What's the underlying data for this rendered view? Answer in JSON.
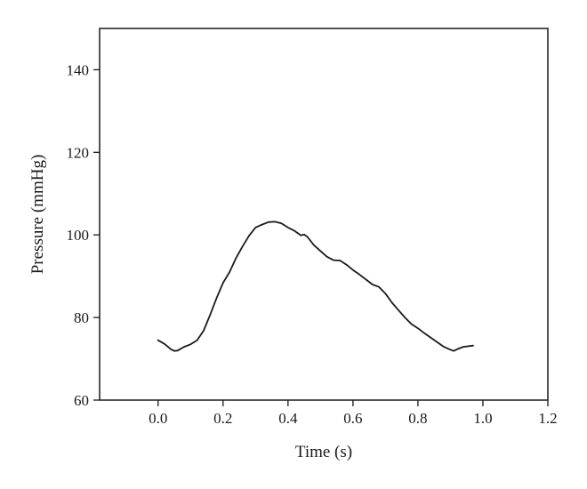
{
  "chart_data": {
    "type": "line",
    "title": "",
    "xlabel": "Time (s)",
    "ylabel": "Pressure (mmHg)",
    "xlim": [
      -0.18,
      1.2
    ],
    "ylim": [
      60,
      150
    ],
    "xticks": [
      0.0,
      0.2,
      0.4,
      0.6,
      0.8,
      1.0,
      1.2
    ],
    "xtick_labels": [
      "0.0",
      "0.2",
      "0.4",
      "0.6",
      "0.8",
      "1.0",
      "1.2"
    ],
    "yticks": [
      60,
      80,
      100,
      120,
      140
    ],
    "ytick_labels": [
      "60",
      "80",
      "100",
      "120",
      "140"
    ],
    "grid": false,
    "legend": "none",
    "series": [
      {
        "color": "#1a1a1a",
        "x": [
          0.0,
          0.02,
          0.04,
          0.05,
          0.06,
          0.08,
          0.1,
          0.12,
          0.14,
          0.16,
          0.18,
          0.2,
          0.22,
          0.24,
          0.26,
          0.28,
          0.3,
          0.32,
          0.34,
          0.36,
          0.38,
          0.4,
          0.42,
          0.44,
          0.45,
          0.46,
          0.48,
          0.5,
          0.52,
          0.54,
          0.56,
          0.58,
          0.6,
          0.62,
          0.64,
          0.66,
          0.68,
          0.7,
          0.72,
          0.74,
          0.76,
          0.78,
          0.8,
          0.82,
          0.84,
          0.86,
          0.88,
          0.9,
          0.91,
          0.92,
          0.94,
          0.97
        ],
        "y": [
          74.5,
          73.6,
          72.3,
          71.9,
          72.0,
          72.9,
          73.5,
          74.5,
          76.8,
          80.6,
          84.7,
          88.4,
          91.0,
          94.4,
          97.2,
          99.8,
          101.8,
          102.5,
          103.1,
          103.2,
          102.8,
          101.8,
          101.0,
          99.9,
          100.1,
          99.5,
          97.5,
          96.1,
          94.7,
          93.9,
          93.8,
          92.8,
          91.5,
          90.4,
          89.2,
          88.0,
          87.4,
          85.8,
          83.6,
          81.8,
          80.0,
          78.4,
          77.4,
          76.2,
          75.1,
          74.0,
          72.9,
          72.2,
          71.9,
          72.3,
          72.9,
          73.2
        ]
      }
    ]
  }
}
